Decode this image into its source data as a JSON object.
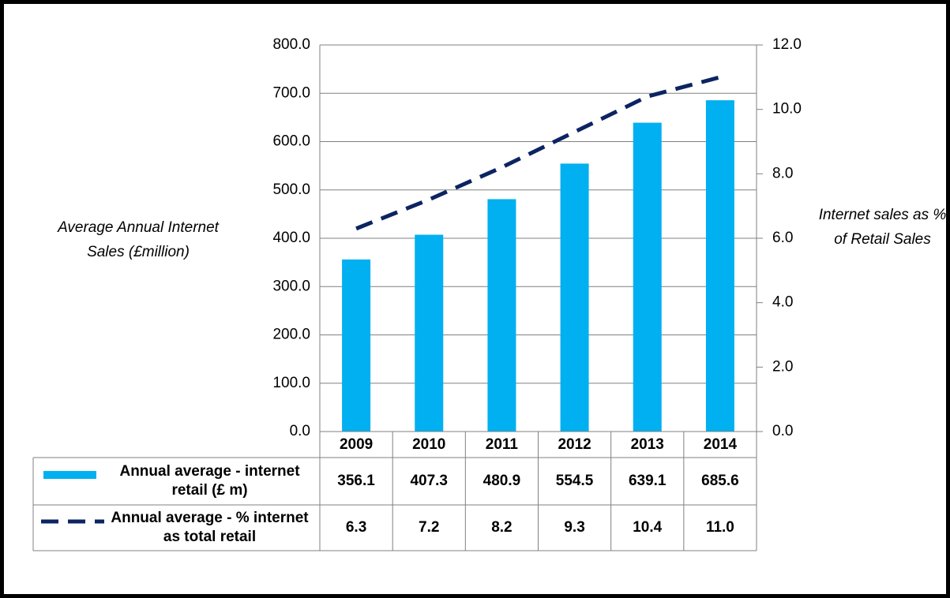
{
  "chart_data": {
    "type": "bar",
    "categories": [
      "2009",
      "2010",
      "2011",
      "2012",
      "2013",
      "2014"
    ],
    "series": [
      {
        "name": "Annual average - internet retail (£ m)",
        "color": "#00b0f0",
        "values": [
          356.1,
          407.3,
          480.9,
          554.5,
          639.1,
          685.6
        ],
        "value_labels": [
          "356.1",
          "407.3",
          "480.9",
          "554.5",
          "639.1",
          "685.6"
        ]
      },
      {
        "name": "Annual average - % internet as total retail",
        "type": "line",
        "axis": "y2",
        "color": "#0c2461",
        "dashed": true,
        "values": [
          6.3,
          7.2,
          8.2,
          9.3,
          10.4,
          11.0
        ],
        "value_labels": [
          "6.3",
          "7.2",
          "8.2",
          "9.3",
          "10.4",
          "11.0"
        ]
      }
    ],
    "ylabel": "Average Annual Internet Sales (£million)",
    "y2label": "Internet sales as % of Retail Sales",
    "ylim": [
      0,
      800
    ],
    "yticks": [
      {
        "value": 0,
        "label": "0.0"
      },
      {
        "value": 100,
        "label": "100.0"
      },
      {
        "value": 200,
        "label": "200.0"
      },
      {
        "value": 300,
        "label": "300.0"
      },
      {
        "value": 400,
        "label": "400.0"
      },
      {
        "value": 500,
        "label": "500.0"
      },
      {
        "value": 600,
        "label": "600.0"
      },
      {
        "value": 700,
        "label": "700.0"
      },
      {
        "value": 800,
        "label": "800.0"
      }
    ],
    "y2lim": [
      0,
      12
    ],
    "y2ticks": [
      {
        "value": 0,
        "label": "0.0"
      },
      {
        "value": 2,
        "label": "2.0"
      },
      {
        "value": 4,
        "label": "4.0"
      },
      {
        "value": 6,
        "label": "6.0"
      },
      {
        "value": 8,
        "label": "8.0"
      },
      {
        "value": 10,
        "label": "10.0"
      },
      {
        "value": 12,
        "label": "12.0"
      }
    ],
    "grid": true
  }
}
